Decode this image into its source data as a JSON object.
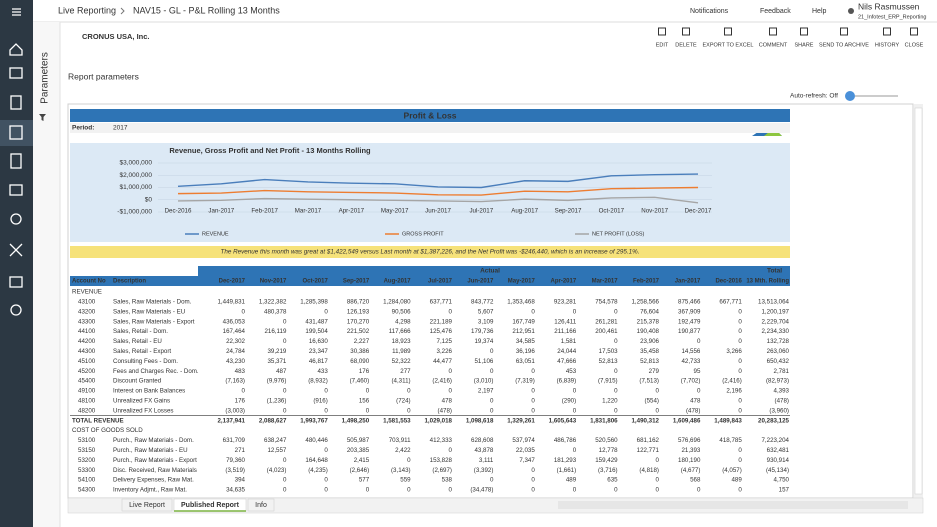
{
  "top_bar": {
    "breadcrumb": [
      "Live Reporting",
      "NAV15 - GL - P&L Rolling 13 Months"
    ],
    "notifications": "Notifications",
    "feedback": "Feedback",
    "help": "Help",
    "user_name": "Nils Rasmussen",
    "user_sub": "21_Infotest_ERP_Reporting"
  },
  "side_panel_label": "Parameters",
  "company": "CRONUS USA, Inc.",
  "toolbar": [
    "EDIT",
    "DELETE",
    "EXPORT TO EXCEL",
    "COMMENT",
    "SHARE",
    "SEND TO ARCHIVE",
    "HISTORY",
    "CLOSE"
  ],
  "report_parameters": "Report parameters",
  "auto_refresh": "Auto-refresh: Off",
  "report": {
    "title": "Profit & Loss",
    "period_label": "Period:",
    "period": "2017",
    "commentary": "The Revenue this month was great at $1,422,549 versus Last month at $1,387,226, and the Net Profit was -$246,440, which is an increase of 295.1%.",
    "table": {
      "group_header": "Actual",
      "total_header": "Total",
      "columns": [
        "Account No",
        "Description",
        "Dec-2017",
        "Nov-2017",
        "Oct-2017",
        "Sep-2017",
        "Aug-2017",
        "Jul-2017",
        "Jun-2017",
        "May-2017",
        "Apr-2017",
        "Mar-2017",
        "Feb-2017",
        "Jan-2017",
        "Dec-2016",
        "13 Mth. Rolling"
      ],
      "rows": [
        {
          "section": "REVENUE"
        },
        {
          "account": "43100",
          "description": "Sales, Raw Materials - Dom.",
          "values": [
            "1,449,831",
            "1,322,382",
            "1,285,398",
            "886,720",
            "1,284,080",
            "637,771",
            "843,772",
            "1,353,468",
            "923,281",
            "754,578",
            "1,258,566",
            "875,466",
            "667,771",
            "13,513,064"
          ]
        },
        {
          "account": "43200",
          "description": "Sales, Raw Materials - EU",
          "values": [
            "0",
            "480,378",
            "0",
            "126,193",
            "90,506",
            "0",
            "5,607",
            "0",
            "0",
            "0",
            "76,604",
            "367,909",
            "0",
            "1,200,197"
          ]
        },
        {
          "account": "43300",
          "description": "Sales, Raw Materials - Export",
          "values": [
            "436,053",
            "0",
            "431,487",
            "170,270",
            "4,298",
            "221,189",
            "3,109",
            "167,749",
            "126,411",
            "261,281",
            "215,378",
            "192,479",
            "0",
            "2,229,704"
          ]
        },
        {
          "account": "44100",
          "description": "Sales, Retail - Dom.",
          "values": [
            "167,464",
            "216,119",
            "199,504",
            "221,502",
            "117,666",
            "125,476",
            "179,736",
            "212,951",
            "211,166",
            "200,461",
            "190,408",
            "190,877",
            "0",
            "2,234,330"
          ]
        },
        {
          "account": "44200",
          "description": "Sales, Retail - EU",
          "values": [
            "22,302",
            "0",
            "16,630",
            "2,227",
            "18,923",
            "7,125",
            "19,374",
            "34,585",
            "1,581",
            "0",
            "23,906",
            "0",
            "0",
            "132,728"
          ]
        },
        {
          "account": "44300",
          "description": "Sales, Retail - Export",
          "values": [
            "24,784",
            "39,219",
            "23,347",
            "30,386",
            "11,989",
            "3,226",
            "0",
            "36,196",
            "24,044",
            "17,503",
            "35,458",
            "14,556",
            "3,266",
            "263,060"
          ]
        },
        {
          "account": "45100",
          "description": "Consulting Fees - Dom.",
          "values": [
            "43,230",
            "35,371",
            "46,817",
            "68,090",
            "52,322",
            "44,477",
            "51,106",
            "63,051",
            "47,666",
            "52,813",
            "52,813",
            "42,733",
            "0",
            "650,432"
          ]
        },
        {
          "account": "45200",
          "description": "Fees and Charges Rec. - Dom.",
          "values": [
            "483",
            "487",
            "433",
            "176",
            "277",
            "0",
            "0",
            "0",
            "453",
            "0",
            "279",
            "95",
            "0",
            "2,781"
          ]
        },
        {
          "account": "45400",
          "description": "Discount Granted",
          "values": [
            "(7,163)",
            "(9,976)",
            "(8,932)",
            "(7,460)",
            "(4,311)",
            "(2,416)",
            "(3,010)",
            "(7,319)",
            "(6,839)",
            "(7,915)",
            "(7,513)",
            "(7,702)",
            "(2,416)",
            "(82,973)"
          ]
        },
        {
          "account": "49100",
          "description": "Interest on Bank Balances",
          "values": [
            "0",
            "0",
            "0",
            "0",
            "0",
            "0",
            "2,197",
            "0",
            "0",
            "0",
            "0",
            "0",
            "2,196",
            "4,393"
          ]
        },
        {
          "account": "48100",
          "description": "Unrealized FX Gains",
          "values": [
            "176",
            "(1,236)",
            "(916)",
            "156",
            "(724)",
            "478",
            "0",
            "0",
            "(290)",
            "1,220",
            "(554)",
            "478",
            "0",
            "(478)"
          ]
        },
        {
          "account": "48200",
          "description": "Unrealized FX Losses",
          "values": [
            "(3,003)",
            "0",
            "0",
            "0",
            "0",
            "(478)",
            "0",
            "0",
            "0",
            "0",
            "0",
            "(478)",
            "0",
            "(3,960)"
          ]
        },
        {
          "label": "TOTAL REVENUE",
          "values": [
            "2,137,941",
            "2,088,627",
            "1,993,767",
            "1,498,250",
            "1,581,553",
            "1,029,018",
            "1,098,618",
            "1,329,261",
            "1,605,643",
            "1,831,806",
            "1,490,312",
            "1,609,486",
            "1,489,843",
            "20,283,125"
          ]
        },
        {
          "section": "COST OF GOODS SOLD"
        },
        {
          "account": "53100",
          "description": "Purch., Raw Materials - Dom.",
          "values": [
            "631,709",
            "638,247",
            "480,446",
            "505,987",
            "703,911",
            "412,333",
            "628,608",
            "537,974",
            "486,786",
            "520,560",
            "681,162",
            "576,696",
            "418,785",
            "7,223,204"
          ]
        },
        {
          "account": "53150",
          "description": "Purch., Raw Materials - EU",
          "values": [
            "271",
            "12,557",
            "0",
            "203,385",
            "2,422",
            "0",
            "43,878",
            "22,035",
            "0",
            "12,778",
            "122,771",
            "21,393",
            "0",
            "632,481"
          ]
        },
        {
          "account": "53200",
          "description": "Purch., Raw Materials - Export",
          "values": [
            "79,360",
            "0",
            "164,648",
            "2,415",
            "0",
            "153,828",
            "3,111",
            "7,347",
            "181,293",
            "159,429",
            "0",
            "180,190",
            "0",
            "930,914"
          ]
        },
        {
          "account": "53300",
          "description": "Disc. Received, Raw Materials",
          "values": [
            "(3,519)",
            "(4,023)",
            "(4,235)",
            "(2,646)",
            "(3,143)",
            "(2,697)",
            "(3,392)",
            "0",
            "(1,661)",
            "(3,716)",
            "(4,818)",
            "(4,677)",
            "(4,057)",
            "(45,134)"
          ]
        },
        {
          "account": "54100",
          "description": "Delivery Expenses, Raw Mat.",
          "values": [
            "394",
            "0",
            "0",
            "577",
            "559",
            "538",
            "0",
            "0",
            "489",
            "635",
            "0",
            "568",
            "489",
            "4,750"
          ]
        },
        {
          "account": "54300",
          "description": "Inventory Adjmt., Raw Mat.",
          "values": [
            "34,635",
            "0",
            "0",
            "0",
            "0",
            "0",
            "(34,478)",
            "0",
            "0",
            "0",
            "0",
            "0",
            "0",
            "157"
          ]
        }
      ]
    }
  },
  "chart_data": {
    "type": "line",
    "title": "Revenue, Gross Profit and Net Profit - 13 Months Rolling",
    "categories": [
      "Dec-2016",
      "Jan-2017",
      "Feb-2017",
      "Mar-2017",
      "Apr-2017",
      "May-2017",
      "Jun-2017",
      "Jul-2017",
      "Aug-2017",
      "Sep-2017",
      "Oct-2017",
      "Nov-2017",
      "Dec-2017"
    ],
    "series": [
      {
        "name": "REVENUE",
        "color": "#4a7ebb",
        "values": [
          1100000,
          1300000,
          1650000,
          1450000,
          1350000,
          1300000,
          1050000,
          1000000,
          1550000,
          1500000,
          1950000,
          2050000,
          2100000
        ]
      },
      {
        "name": "GROSS PROFIT",
        "color": "#ed7d31",
        "values": [
          500000,
          550000,
          750000,
          650000,
          600000,
          550000,
          400000,
          380000,
          700000,
          650000,
          900000,
          950000,
          1000000
        ]
      },
      {
        "name": "NET PROFIT (LOSS)",
        "color": "#a5a5a5",
        "values": [
          -100000,
          -50000,
          100000,
          50000,
          0,
          -50000,
          -100000,
          -150000,
          50000,
          -50000,
          150000,
          200000,
          -250000
        ]
      }
    ],
    "ylim": [
      -1000000,
      3000000
    ],
    "yticks": [
      {
        "value": 3000000,
        "label": "$3,000,000"
      },
      {
        "value": 2000000,
        "label": "$2,000,000"
      },
      {
        "value": 1000000,
        "label": "$1,000,000"
      },
      {
        "value": 0,
        "label": "$0"
      },
      {
        "value": -1000000,
        "label": "-$1,000,000"
      }
    ],
    "grid": true
  },
  "tabs": [
    "Live Report",
    "Published Report",
    "Info"
  ]
}
